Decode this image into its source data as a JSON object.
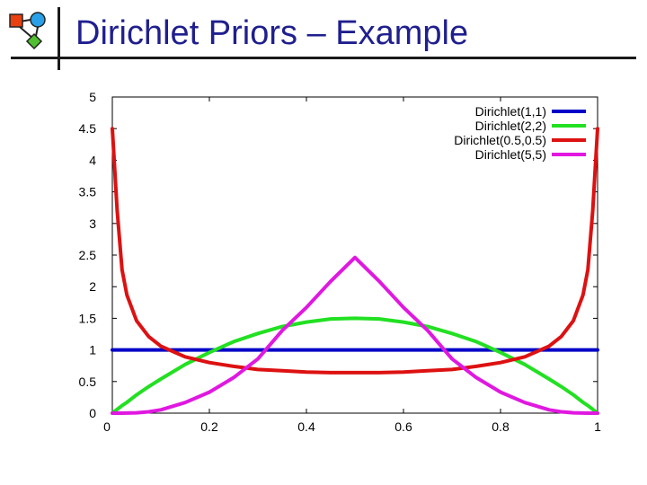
{
  "slide": {
    "title": "Dirichlet Priors – Example",
    "logo_icon": "bayes-net-logo-icon"
  },
  "colors": {
    "title": "#1f1f8f",
    "blue": "#0000c8",
    "green": "#22e022",
    "red": "#dd1111",
    "magenta": "#e018e0"
  },
  "chart_data": {
    "type": "line",
    "title": "",
    "xlabel": "",
    "ylabel": "",
    "xlim": [
      0,
      1
    ],
    "ylim": [
      0,
      5
    ],
    "xticks": [
      "0",
      "0.2",
      "0.4",
      "0.6",
      "0.8",
      "1"
    ],
    "yticks": [
      "0",
      "0.5",
      "1",
      "1.5",
      "2",
      "2.5",
      "3",
      "3.5",
      "4",
      "4.5",
      "5"
    ],
    "grid": false,
    "legend": "top-right",
    "x": [
      0,
      0.01,
      0.02,
      0.03,
      0.05,
      0.075,
      0.1,
      0.15,
      0.2,
      0.25,
      0.3,
      0.35,
      0.4,
      0.45,
      0.5,
      0.55,
      0.6,
      0.65,
      0.7,
      0.75,
      0.8,
      0.85,
      0.9,
      0.925,
      0.95,
      0.97,
      0.98,
      0.99,
      1
    ],
    "series": [
      {
        "name": "Dirichlet(1,1)",
        "color": "#0000c8",
        "values": [
          1,
          1,
          1,
          1,
          1,
          1,
          1,
          1,
          1,
          1,
          1,
          1,
          1,
          1,
          1,
          1,
          1,
          1,
          1,
          1,
          1,
          1,
          1,
          1,
          1,
          1,
          1,
          1,
          1
        ]
      },
      {
        "name": "Dirichlet(2,2)",
        "color": "#22e022",
        "values": [
          0,
          0.06,
          0.12,
          0.17,
          0.29,
          0.42,
          0.54,
          0.77,
          0.96,
          1.13,
          1.26,
          1.37,
          1.44,
          1.49,
          1.5,
          1.49,
          1.44,
          1.37,
          1.26,
          1.13,
          0.96,
          0.77,
          0.54,
          0.42,
          0.29,
          0.17,
          0.12,
          0.06,
          0
        ]
      },
      {
        "name": "Dirichlet(0.5,0.5)",
        "color": "#dd1111",
        "values": [
          4.5,
          3.2,
          2.27,
          1.87,
          1.46,
          1.21,
          1.06,
          0.89,
          0.8,
          0.74,
          0.69,
          0.67,
          0.65,
          0.64,
          0.64,
          0.64,
          0.65,
          0.67,
          0.69,
          0.74,
          0.8,
          0.89,
          1.06,
          1.21,
          1.46,
          1.87,
          2.27,
          3.2,
          4.5
        ]
      },
      {
        "name": "Dirichlet(5,5)",
        "color": "#e018e0",
        "values": [
          0,
          0,
          0,
          0.001,
          0.005,
          0.022,
          0.053,
          0.168,
          0.332,
          0.563,
          0.858,
          1.306,
          1.672,
          2.085,
          2.461,
          2.085,
          1.672,
          1.306,
          0.858,
          0.563,
          0.332,
          0.168,
          0.053,
          0.022,
          0.005,
          0.001,
          0,
          0,
          0
        ]
      }
    ]
  }
}
